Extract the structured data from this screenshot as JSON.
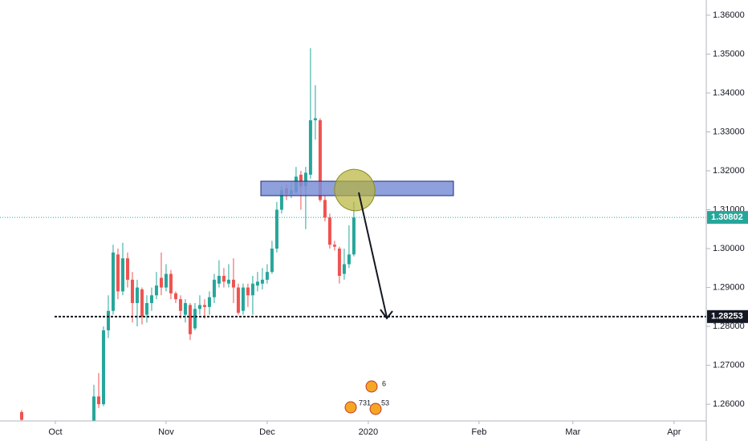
{
  "chart_data": {
    "type": "candlestick",
    "open": [
      1.258,
      null,
      null,
      null,
      null,
      null,
      null,
      null,
      null,
      null,
      null,
      null,
      null,
      null,
      null,
      1.255,
      1.262,
      1.26,
      1.279,
      1.284,
      1.2985,
      1.289,
      1.2975,
      1.292,
      1.286,
      1.2895,
      1.283,
      1.286,
      1.288,
      1.2925,
      1.29,
      1.2935,
      1.2885,
      1.287,
      1.283,
      1.2855,
      1.2795,
      1.2845,
      1.2855,
      1.285,
      1.2875,
      1.291,
      1.293,
      1.291,
      1.292,
      1.29,
      1.284,
      1.29,
      1.288,
      1.2905,
      1.291,
      1.292,
      1.294,
      1.3,
      1.31,
      1.3155,
      1.314,
      1.3145,
      1.319,
      1.316,
      1.319,
      1.333,
      1.333,
      1.3125,
      1.308,
      1.301,
      1.3,
      1.2935,
      1.296,
      1.2985
    ],
    "high": [
      1.2585,
      null,
      null,
      null,
      null,
      null,
      null,
      null,
      null,
      null,
      null,
      null,
      null,
      null,
      null,
      1.265,
      1.268,
      1.28,
      1.288,
      1.301,
      1.3,
      1.3015,
      1.299,
      1.294,
      1.292,
      1.29,
      1.288,
      1.29,
      1.294,
      1.299,
      1.296,
      1.2945,
      1.289,
      1.288,
      1.287,
      1.286,
      1.286,
      1.288,
      1.287,
      1.289,
      1.2935,
      1.297,
      1.295,
      1.296,
      1.2975,
      1.291,
      1.291,
      1.291,
      1.293,
      1.294,
      1.295,
      1.296,
      1.302,
      1.312,
      1.316,
      1.3165,
      1.317,
      1.321,
      1.32,
      1.321,
      1.3515,
      1.342,
      1.3335,
      1.3135,
      1.309,
      1.302,
      1.3005,
      1.3,
      1.306,
      1.312
    ],
    "low": [
      1.255,
      null,
      null,
      null,
      null,
      null,
      null,
      null,
      null,
      null,
      null,
      null,
      null,
      null,
      null,
      1.254,
      1.259,
      1.2595,
      1.277,
      1.283,
      1.287,
      1.288,
      1.29,
      1.281,
      1.28,
      1.2805,
      1.281,
      1.284,
      1.287,
      1.288,
      1.289,
      1.287,
      1.286,
      1.282,
      1.281,
      1.2765,
      1.279,
      1.283,
      1.282,
      1.283,
      1.286,
      1.29,
      1.29,
      1.29,
      1.286,
      1.283,
      1.283,
      1.285,
      1.283,
      1.289,
      1.2895,
      1.291,
      1.2935,
      1.299,
      1.309,
      1.3125,
      1.313,
      1.314,
      1.31,
      1.305,
      1.318,
      1.328,
      1.312,
      1.307,
      1.3,
      1.2995,
      1.291,
      1.292,
      1.295,
      1.298
    ],
    "close": [
      1.256,
      null,
      null,
      null,
      null,
      null,
      null,
      null,
      null,
      null,
      null,
      null,
      null,
      null,
      null,
      1.262,
      1.26,
      1.279,
      1.284,
      1.299,
      1.289,
      1.2975,
      1.292,
      1.286,
      1.29,
      1.2825,
      1.286,
      1.288,
      1.2905,
      1.29,
      1.2935,
      1.2885,
      1.287,
      1.284,
      1.286,
      1.278,
      1.2845,
      1.2855,
      1.285,
      1.2875,
      1.292,
      1.293,
      1.2915,
      1.292,
      1.29,
      1.2835,
      1.29,
      1.288,
      1.291,
      1.2915,
      1.292,
      1.294,
      1.3,
      1.31,
      1.315,
      1.314,
      1.315,
      1.3185,
      1.316,
      1.3195,
      1.333,
      1.3335,
      1.3125,
      1.308,
      1.301,
      1.3005,
      1.293,
      1.296,
      1.2985,
      1.308
    ],
    "up_color": "#26a69a",
    "down_color": "#ef5350",
    "xlim": [
      -4.5,
      142.2
    ],
    "xticks": [
      {
        "value": 7,
        "label": "Oct"
      },
      {
        "value": 30,
        "label": "Nov"
      },
      {
        "value": 51,
        "label": "Dec"
      },
      {
        "value": 72,
        "label": "2020"
      },
      {
        "value": 95,
        "label": "Feb"
      },
      {
        "value": 114.5,
        "label": "Mar"
      },
      {
        "value": 135.5,
        "label": "Apr"
      }
    ],
    "ylim": [
      1.2557,
      1.3639
    ],
    "yticks": [
      {
        "value": 1.26,
        "label": "1.26000"
      },
      {
        "value": 1.27,
        "label": "1.27000"
      },
      {
        "value": 1.28,
        "label": "1.28000"
      },
      {
        "value": 1.29,
        "label": "1.29000"
      },
      {
        "value": 1.3,
        "label": "1.30000"
      },
      {
        "value": 1.31,
        "label": "1.31000"
      },
      {
        "value": 1.32,
        "label": "1.32000"
      },
      {
        "value": 1.33,
        "label": "1.33000"
      },
      {
        "value": 1.34,
        "label": "1.34000"
      },
      {
        "value": 1.35,
        "label": "1.35000"
      },
      {
        "value": 1.36,
        "label": "1.36000"
      }
    ],
    "price_lines": [
      {
        "value": 1.30802,
        "color": "#26a69a"
      },
      {
        "value": 1.28253,
        "color": "#131722"
      }
    ],
    "events": [
      "6",
      "731",
      "53"
    ]
  }
}
